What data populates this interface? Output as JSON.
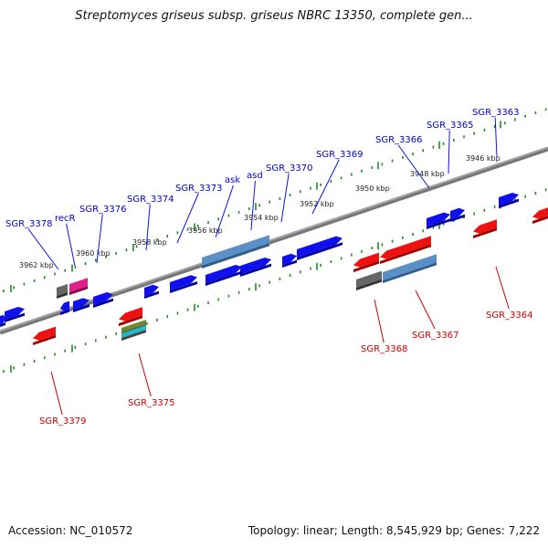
{
  "title": "Streptomyces griseus subsp. griseus NBRC 13350, complete gen...",
  "footer": {
    "accession": "Accession: NC_010572",
    "topology": "Topology: linear; Length: 8,545,929 bp; Genes: 7,222"
  },
  "colors": {
    "forward_label": "#0000cc",
    "reverse_label": "#cc0000",
    "backbone": "#8a8a8a",
    "tick": "#228b22"
  },
  "ruler_labels": [
    "3946 kbp",
    "3948 kbp",
    "3950 kbp",
    "3952 kbp",
    "3954 kbp",
    "3956 kbp",
    "3958 kbp",
    "3960 kbp",
    "3962 kbp"
  ],
  "forward_gene_labels": [
    "SGR_3363",
    "SGR_3365",
    "SGR_3366",
    "SGR_3369",
    "SGR_3370",
    "asd",
    "ask",
    "SGR_3373",
    "SGR_3374",
    "SGR_3376",
    "recR",
    "SGR_3378"
  ],
  "reverse_gene_labels": [
    "SGR_3364",
    "SGR_3367",
    "SGR_3368",
    "SGR_3375",
    "SGR_3379"
  ]
}
